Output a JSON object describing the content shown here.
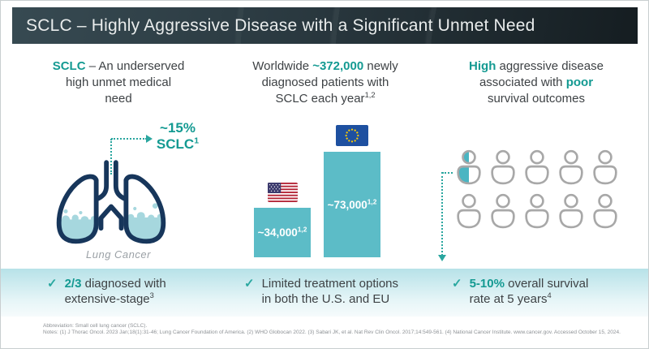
{
  "header": {
    "title": "SCLC – Highly Aggressive Disease with a Significant Unmet Need"
  },
  "columns": {
    "left": {
      "heading": [
        {
          "t": "SCLC",
          "accent": true
        },
        {
          "t": " – An underserved\nhigh unmet medical\nneed"
        }
      ],
      "callout": [
        {
          "t": "~15%\nSCLC",
          "accent": true
        },
        {
          "t": "1",
          "accent": true,
          "sup": true
        }
      ],
      "image_caption": "Lung Cancer"
    },
    "middle": {
      "heading": [
        {
          "t": "Worldwide "
        },
        {
          "t": "~372,000",
          "accent": true
        },
        {
          "t": " newly\ndiagnosed patients with\nSCLC each year"
        },
        {
          "t": "1,2",
          "sup": true
        }
      ]
    },
    "right": {
      "heading": [
        {
          "t": "High",
          "accent": true
        },
        {
          "t": " aggressive disease\nassociated with "
        },
        {
          "t": "poor",
          "accent": true
        },
        {
          "t": "\nsurvival outcomes"
        }
      ]
    }
  },
  "chart_data": {
    "type": "bar",
    "categories": [
      "U.S.",
      "EU"
    ],
    "values": [
      34000,
      73000
    ],
    "value_labels": [
      [
        {
          "t": "~34,000"
        },
        {
          "t": "1,2",
          "sup": true
        }
      ],
      [
        {
          "t": "~73,000"
        },
        {
          "t": "1,2",
          "sup": true
        }
      ]
    ],
    "flag_icons": [
      "us-flag-icon",
      "eu-flag-icon"
    ],
    "bar_color": "#5cbcc7",
    "legend": "none",
    "axes": "none"
  },
  "people": {
    "total": 10,
    "per_row": 5,
    "half_filled_index": 0
  },
  "band": {
    "items": [
      {
        "check": "✓",
        "text": [
          {
            "t": "2/3",
            "accent": true
          },
          {
            "t": " diagnosed with\nextensive-stage"
          },
          {
            "t": "3",
            "sup": true
          }
        ]
      },
      {
        "check": "✓",
        "text": [
          {
            "t": "Limited treatment options\nin both the U.S. and EU"
          }
        ]
      },
      {
        "check": "✓",
        "text": [
          {
            "t": "5-10%",
            "accent": true
          },
          {
            "t": " overall survival\nrate at 5 years"
          },
          {
            "t": "4",
            "sup": true
          }
        ]
      }
    ]
  },
  "footer": {
    "line1": "Abbreviation: Small cell lung cancer (SCLC).",
    "line2": "Notes: (1) J Thorac Oncol. 2023 Jan;18(1):31-46; Lung Cancer Foundation of America. (2) WHO Globocan 2022. (3) Sabari JK, et al. Nat Rev Clin Oncol. 2017;14:549-561. (4) National Cancer Institute. www.cancer.gov. Accessed October 15, 2024."
  },
  "colors": {
    "accent_teal": "#149a92",
    "bar_teal": "#5cbcc7",
    "lungs_navy": "#17365b",
    "liquid_blue": "#a6d7de",
    "band_top": "#b7e2e8",
    "header_dark": "#2a3940",
    "people_gray": "#a8a8a8",
    "half_fill_teal": "#4ab5c2"
  }
}
